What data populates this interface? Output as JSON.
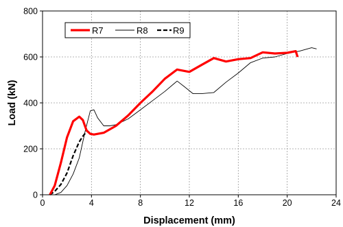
{
  "chart_data": {
    "type": "line",
    "title": "",
    "xlabel": "Displacement (mm)",
    "ylabel": "Load (kN)",
    "xlim": [
      0,
      24
    ],
    "ylim": [
      0,
      800
    ],
    "xticks": [
      "0",
      "4",
      "8",
      "12",
      "16",
      "20",
      "24"
    ],
    "yticks": [
      "0",
      "200",
      "400",
      "600",
      "800"
    ],
    "grid": true,
    "legend": {
      "placement": "top-left"
    },
    "series": [
      {
        "name": "R7",
        "color": "#ff0000",
        "style": "solid-thick",
        "x": [
          0.6,
          1.0,
          1.5,
          2.0,
          2.5,
          3.0,
          3.3,
          3.6,
          3.9,
          4.2,
          5.0,
          6.0,
          7.0,
          8.0,
          9.0,
          10.0,
          11.0,
          12.0,
          13.0,
          14.0,
          15.0,
          16.0,
          17.0,
          18.0,
          19.0,
          20.0,
          20.7,
          20.85
        ],
        "y": [
          0,
          40,
          140,
          250,
          320,
          340,
          325,
          280,
          265,
          262,
          270,
          300,
          345,
          400,
          450,
          505,
          545,
          535,
          565,
          595,
          580,
          590,
          595,
          620,
          615,
          618,
          625,
          600
        ]
      },
      {
        "name": "R8",
        "color": "#000000",
        "style": "solid-thin",
        "x": [
          1.0,
          1.5,
          2.0,
          2.5,
          3.0,
          3.5,
          3.9,
          4.2,
          4.5,
          5.0,
          5.5,
          6.0,
          7.0,
          8.0,
          9.0,
          10.0,
          11.0,
          11.6,
          12.3,
          13.0,
          14.0,
          15.0,
          16.0,
          17.0,
          18.0,
          19.0,
          20.0,
          21.0,
          22.0,
          22.4
        ],
        "y": [
          0,
          10,
          40,
          90,
          160,
          280,
          365,
          370,
          335,
          300,
          300,
          305,
          330,
          370,
          410,
          450,
          495,
          470,
          440,
          440,
          445,
          490,
          530,
          575,
          595,
          600,
          615,
          625,
          640,
          635
        ]
      },
      {
        "name": "R9",
        "color": "#000000",
        "style": "dashed",
        "x": [
          0.6,
          1.0,
          1.5,
          2.0,
          2.5,
          3.0,
          3.3,
          3.6
        ],
        "y": [
          0,
          15,
          45,
          95,
          170,
          230,
          255,
          275
        ]
      }
    ]
  }
}
